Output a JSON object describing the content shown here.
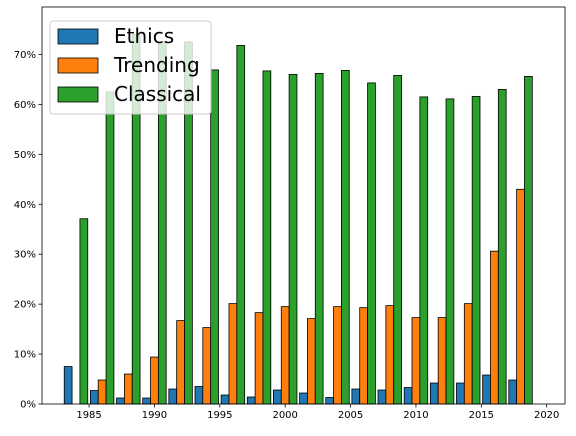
{
  "chart_data": {
    "type": "bar",
    "title": "",
    "xlabel": "",
    "ylabel": "",
    "x": [
      1984,
      1986,
      1988,
      1990,
      1992,
      1994,
      1996,
      1998,
      2000,
      2002,
      2004,
      2006,
      2008,
      2010,
      2012,
      2014,
      2016,
      2018
    ],
    "xlim": [
      1981.4,
      2021.4
    ],
    "ylim": [
      0,
      79.5
    ],
    "x_ticks": [
      1985,
      1990,
      1995,
      2000,
      2005,
      2010,
      2015,
      2020
    ],
    "x_tick_labels": [
      "1985",
      "1990",
      "1995",
      "2000",
      "2005",
      "2010",
      "2015",
      "2020"
    ],
    "y_ticks": [
      0,
      10,
      20,
      30,
      40,
      50,
      60,
      70
    ],
    "y_tick_labels": [
      "0%",
      "10%",
      "20%",
      "30%",
      "40%",
      "50%",
      "60%",
      "70%"
    ],
    "grid": false,
    "legend_position": "upper-left",
    "series": [
      {
        "name": "Ethics",
        "color": "#1f77b4",
        "offset": -0.6,
        "values": [
          7.5,
          2.7,
          1.2,
          1.2,
          3.0,
          3.5,
          1.8,
          1.4,
          2.8,
          2.2,
          1.3,
          3.0,
          2.8,
          3.3,
          4.2,
          4.2,
          5.8,
          4.8
        ]
      },
      {
        "name": "Trending",
        "color": "#ff7f0e",
        "offset": 0.0,
        "values": [
          0,
          4.8,
          6.0,
          9.4,
          16.7,
          15.3,
          20.1,
          18.3,
          19.5,
          17.1,
          19.5,
          19.3,
          19.7,
          17.3,
          17.3,
          20.1,
          30.6,
          43.0
        ]
      },
      {
        "name": "Classical",
        "color": "#2ca02c",
        "offset": 0.6,
        "values": [
          37.1,
          62.5,
          74.0,
          72.5,
          72.5,
          66.9,
          71.8,
          66.7,
          66.0,
          66.2,
          66.8,
          64.3,
          65.8,
          61.5,
          61.1,
          61.6,
          63.0,
          65.6
        ]
      }
    ]
  }
}
